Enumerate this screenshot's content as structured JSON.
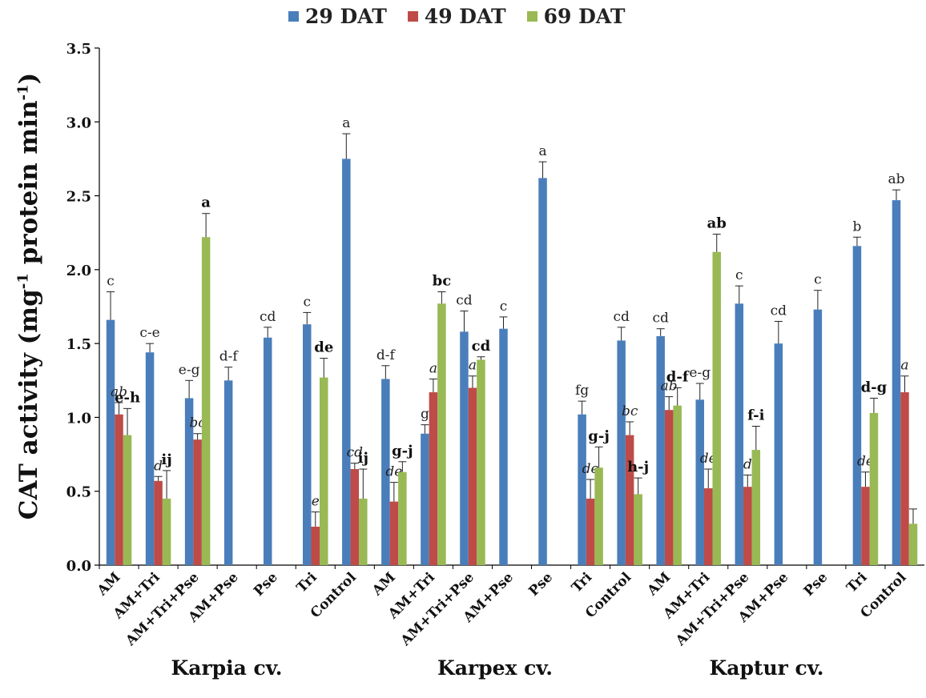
{
  "legend": [
    {
      "name": "29 DAT",
      "color": "#4a7ebb"
    },
    {
      "name": "49 DAT",
      "color": "#be4b48"
    },
    {
      "name": "69 DAT",
      "color": "#98b954"
    }
  ],
  "ylabel": {
    "main": "CAT activity (mg",
    "sup1": "-1",
    "mid": " protein min",
    "sup2": "-1",
    "end": ")"
  },
  "groups": [
    "Karpia cv.",
    "Karpex cv.",
    "Kaptur cv."
  ],
  "chart_data": {
    "type": "bar",
    "title": "",
    "ylabel": "CAT activity (mg-1 protein min-1)",
    "ylim": [
      0,
      3.5
    ],
    "yticks": [
      "0.0",
      "0.5",
      "1.0",
      "1.5",
      "2.0",
      "2.5",
      "3.0",
      "3.5"
    ],
    "categories": [
      "AM",
      "AM+Tri",
      "AM+Tri+Pse",
      "AM+Pse",
      "Pse",
      "Tri",
      "Control",
      "AM",
      "AM+Tri",
      "AM+Tri+Pse",
      "AM+Pse",
      "Pse",
      "Tri",
      "Control",
      "AM",
      "AM+Tri",
      "AM+Tri+Pse",
      "AM+Pse",
      "Pse",
      "Tri",
      "Control"
    ],
    "series": [
      {
        "name": "29 DAT",
        "values": [
          1.66,
          1.44,
          1.13,
          1.25,
          1.54,
          1.63,
          2.75,
          1.26,
          0.89,
          1.58,
          1.6,
          2.62,
          1.02,
          1.52,
          1.55,
          1.12,
          1.77,
          1.5,
          1.73,
          2.16,
          2.47
        ],
        "errors": [
          0.19,
          0.06,
          0.12,
          0.09,
          0.07,
          0.08,
          0.17,
          0.09,
          0.06,
          0.14,
          0.08,
          0.11,
          0.09,
          0.09,
          0.05,
          0.11,
          0.12,
          0.15,
          0.13,
          0.06,
          0.07
        ],
        "labels": [
          "c",
          "c-e",
          "e-g",
          "d-f",
          "cd",
          "c",
          "a",
          "d-f",
          "g",
          "cd",
          "c",
          "a",
          "fg",
          "cd",
          "cd",
          "e-g",
          "c",
          "cd",
          "c",
          "b",
          "ab"
        ]
      },
      {
        "name": "49 DAT",
        "values": [
          1.02,
          0.57,
          0.85,
          null,
          null,
          0.26,
          0.65,
          0.43,
          1.17,
          1.2,
          null,
          null,
          0.45,
          0.88,
          1.05,
          0.52,
          0.53,
          null,
          null,
          0.53,
          1.17
        ],
        "errors": [
          0.08,
          0.03,
          0.04,
          null,
          null,
          0.1,
          0.04,
          0.13,
          0.09,
          0.08,
          null,
          null,
          0.13,
          0.09,
          0.09,
          0.13,
          0.08,
          null,
          null,
          0.1,
          0.11
        ],
        "labels": [
          "ab",
          "d",
          "bc",
          "",
          "",
          "e",
          "cd",
          "de",
          "a",
          "a",
          "",
          "",
          "de",
          "bc",
          "ab",
          "de",
          "d",
          "",
          "",
          "de",
          "a"
        ]
      },
      {
        "name": "69 DAT",
        "values": [
          0.88,
          0.45,
          2.22,
          null,
          null,
          1.27,
          0.45,
          0.63,
          1.77,
          1.39,
          null,
          null,
          0.66,
          0.48,
          1.08,
          2.12,
          0.78,
          null,
          null,
          1.03,
          0.28
        ],
        "errors": [
          0.18,
          0.19,
          0.16,
          null,
          null,
          0.13,
          0.2,
          0.07,
          0.08,
          0.02,
          null,
          null,
          0.14,
          0.11,
          0.12,
          0.12,
          0.16,
          null,
          null,
          0.1,
          0.1
        ],
        "labels": [
          "e-h",
          "ij",
          "a",
          "",
          "",
          "de",
          "ij",
          "g-j",
          "bc",
          "cd",
          "",
          "",
          "g-j",
          "h-j",
          "d-f",
          "ab",
          "f-i",
          "",
          "",
          "d-g",
          ""
        ]
      }
    ]
  }
}
